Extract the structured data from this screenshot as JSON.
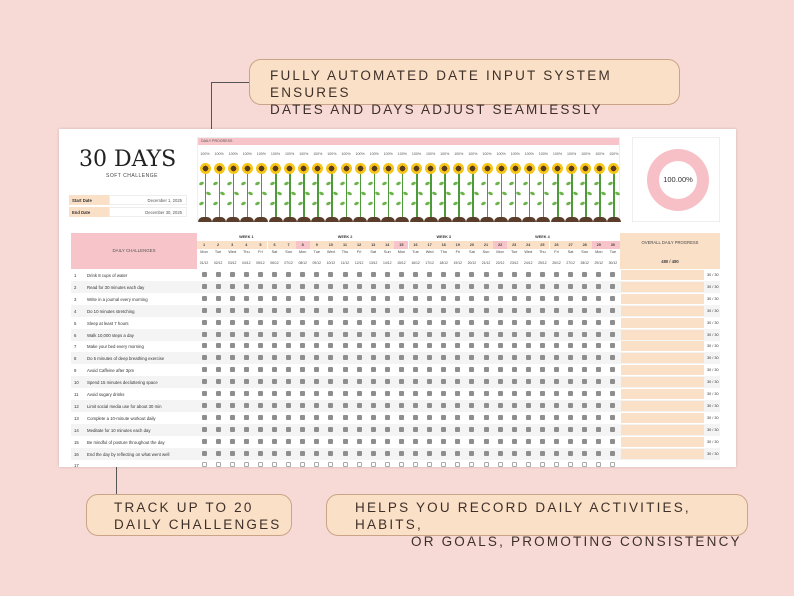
{
  "callouts": {
    "top_line1": "FULLY AUTOMATED DATE INPUT SYSTEM ENSURES",
    "top_line2": "DATES AND DAYS ADJUST SEAMLESSLY",
    "bottom_left_line1": "TRACK UP TO 20",
    "bottom_left_line2": "DAILY CHALLENGES",
    "bottom_right_line1": "HELPS YOU RECORD DAILY ACTIVITIES, HABITS,",
    "bottom_right_line2": "OR GOALS, PROMOTING CONSISTENCY"
  },
  "sheet": {
    "title": "30 DAYS",
    "subtitle": "SOFT CHALLENGE",
    "start_date_label": "Start Date",
    "start_date": "December 1, 2025",
    "end_date_label": "End Date",
    "end_date": "December 30, 2025",
    "daily_progress_label": "DAILY PROGRESS",
    "daily_progress_pct": "100%",
    "overall_pct": "100.00%",
    "daily_challenges_label": "DAILY CHALLENGES",
    "overall_daily_progress_label": "OVERALL DAILY PROGRESS",
    "overall_fraction": "480 / 480",
    "weeks": [
      "WEEK 1",
      "WEEK 2",
      "WEEK 3",
      "WEEK 4"
    ],
    "weekday_names": [
      "Mon",
      "Tue",
      "Wed",
      "Thu",
      "Fri",
      "Sat",
      "Sun"
    ],
    "day_numbers": [
      1,
      2,
      3,
      4,
      5,
      6,
      7,
      8,
      9,
      10,
      11,
      12,
      13,
      14,
      15,
      16,
      17,
      18,
      19,
      20,
      21,
      22,
      23,
      24,
      25,
      26,
      27,
      28,
      29,
      30
    ],
    "dates": [
      "01/12",
      "02/12",
      "03/12",
      "04/12",
      "05/12",
      "06/12",
      "07/12",
      "08/12",
      "09/12",
      "10/12",
      "11/12",
      "12/12",
      "13/12",
      "14/12",
      "15/12",
      "16/12",
      "17/12",
      "18/12",
      "19/12",
      "20/12",
      "21/12",
      "22/12",
      "23/12",
      "24/12",
      "25/12",
      "26/12",
      "27/12",
      "28/12",
      "29/12",
      "30/12"
    ],
    "challenges": [
      {
        "num": "1",
        "text": "Drink 8 cups of water",
        "score": "30 / 30"
      },
      {
        "num": "2",
        "text": "Read for 30 minutes each day",
        "score": "30 / 30"
      },
      {
        "num": "3",
        "text": "Write in a journal every morning",
        "score": "30 / 30"
      },
      {
        "num": "4",
        "text": "Do 10 minutes stretching",
        "score": "30 / 30"
      },
      {
        "num": "5",
        "text": "Sleep at least 7 hours",
        "score": "30 / 30"
      },
      {
        "num": "6",
        "text": "Walk 10,000 steps a day",
        "score": "30 / 30"
      },
      {
        "num": "7",
        "text": "Make your bed every morning",
        "score": "30 / 30"
      },
      {
        "num": "8",
        "text": "Do 5 minutes of deep breathing exercise",
        "score": "30 / 30"
      },
      {
        "num": "9",
        "text": "Avoid Caffeine after 3pm",
        "score": "30 / 30"
      },
      {
        "num": "10",
        "text": "Spend 15 minutes decluttering space",
        "score": "30 / 30"
      },
      {
        "num": "11",
        "text": "Avoid sugary drinks",
        "score": "30 / 30"
      },
      {
        "num": "12",
        "text": "Limit social media use for about 30 min",
        "score": "30 / 30"
      },
      {
        "num": "13",
        "text": "Complete a 10-minute workout daily",
        "score": "30 / 30"
      },
      {
        "num": "14",
        "text": "Meditate for 10 minutes each day",
        "score": "30 / 30"
      },
      {
        "num": "15",
        "text": "Be mindful of posture throughout the day",
        "score": "30 / 30"
      },
      {
        "num": "16",
        "text": "End the day by reflecting on what went well",
        "score": "30 / 30"
      },
      {
        "num": "17",
        "text": "",
        "score": ""
      }
    ]
  },
  "colors": {
    "background": "#f7d9d6",
    "callout": "#fbe0c8",
    "pink_header": "#f7c5c9",
    "checkbox": "#8e8e8e"
  }
}
